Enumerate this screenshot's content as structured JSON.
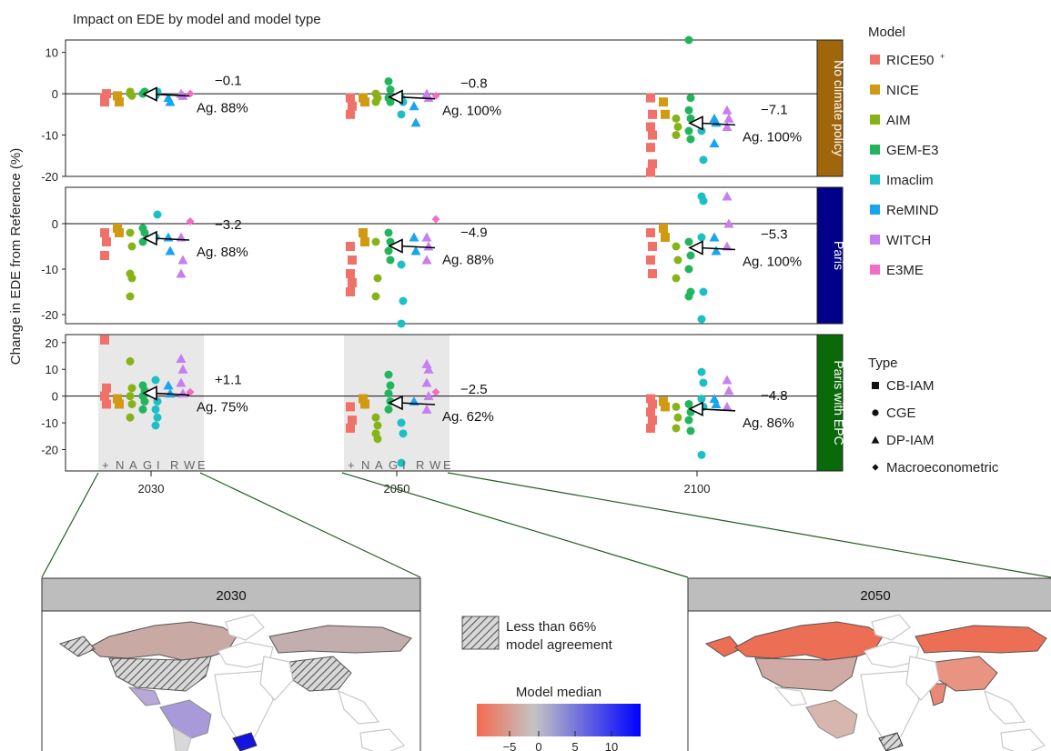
{
  "figure_title": "Impact on EDE by model and model type",
  "y_axis_label": "Change in EDE from Reference (%)",
  "legend": {
    "model_title": "Model",
    "models": [
      {
        "label": "RICE50",
        "sup": "+",
        "color": "#f0716a"
      },
      {
        "label": "NICE",
        "color": "#d19a12"
      },
      {
        "label": "AIM",
        "color": "#86b418"
      },
      {
        "label": "GEM-E3",
        "color": "#22b55e"
      },
      {
        "label": "Imaclim",
        "color": "#1cc0c4"
      },
      {
        "label": "ReMIND",
        "color": "#1aa3f0"
      },
      {
        "label": "WITCH",
        "color": "#c67ef0"
      },
      {
        "label": "E3ME",
        "color": "#f26cc8"
      }
    ],
    "type_title": "Type",
    "types": [
      {
        "label": "CB-IAM",
        "shape": "square"
      },
      {
        "label": "CGE",
        "shape": "circle"
      },
      {
        "label": "DP-IAM",
        "shape": "triangle"
      },
      {
        "label": "Macroeconometric",
        "shape": "diamond"
      }
    ]
  },
  "chart_data": {
    "type": "scatter",
    "x_categories": [
      "2030",
      "2050",
      "2100"
    ],
    "model_letters": [
      "+",
      "N",
      "A",
      "G",
      "I",
      "R",
      "W",
      "E"
    ],
    "panels": [
      {
        "label": "No climate policy",
        "strip_color": "#a0660c",
        "ylim": [
          -20,
          13
        ],
        "yticks": [
          10,
          0,
          -10,
          -20
        ],
        "groups": [
          {
            "year": "2030",
            "median": -0.1,
            "median_label": "−0.1",
            "agreement": "Ag. 88%",
            "highlight": false,
            "models": [
              [
                -1,
                0,
                -2
              ],
              [
                -0.5,
                -2
              ],
              [
                0,
                -0.5,
                0.5
              ],
              [
                0,
                0.5
              ],
              [
                -0.5,
                0.5
              ],
              [
                -1,
                -2
              ],
              [
                0,
                -0.5
              ],
              [
                0
              ]
            ]
          },
          {
            "year": "2050",
            "median": -0.8,
            "median_label": "−0.8",
            "agreement": "Ag. 100%",
            "highlight": false,
            "models": [
              [
                -1,
                -3,
                -5
              ],
              [
                -1,
                -2
              ],
              [
                0,
                -1,
                -2
              ],
              [
                3,
                1,
                -1,
                -2
              ],
              [
                -1,
                -2,
                -5
              ],
              [
                -3,
                -7
              ],
              [
                0,
                -1
              ],
              [
                -0.5
              ]
            ]
          },
          {
            "year": "2100",
            "median": -7.1,
            "median_label": "−7.1",
            "agreement": "Ag. 100%",
            "highlight": false,
            "models": [
              [
                -1,
                -5,
                -8,
                -10,
                -13,
                -17,
                -19
              ],
              [
                -2,
                -5
              ],
              [
                -6,
                -8,
                -10
              ],
              [
                13,
                -1,
                -4,
                -6,
                -9,
                -11
              ],
              [
                -9,
                -16
              ],
              [
                -6,
                -7,
                -12
              ],
              [
                -4,
                -6,
                -8
              ],
              []
            ]
          }
        ]
      },
      {
        "label": "Paris",
        "strip_color": "#000088",
        "ylim": [
          -22,
          8
        ],
        "yticks": [
          0,
          -10,
          -20
        ],
        "groups": [
          {
            "year": "2030",
            "median": -3.2,
            "median_label": "−3.2",
            "agreement": "Ag. 88%",
            "highlight": false,
            "models": [
              [
                -2,
                -4,
                -7
              ],
              [
                -1,
                -2
              ],
              [
                -2,
                -5,
                -11,
                -12,
                -16
              ],
              [
                -1,
                -2,
                -4
              ],
              [
                -3,
                2
              ],
              [
                -3,
                -6
              ],
              [
                -3,
                -8,
                -11
              ],
              [
                0.5
              ]
            ]
          },
          {
            "year": "2050",
            "median": -4.9,
            "median_label": "−4.9",
            "agreement": "Ag. 88%",
            "highlight": false,
            "models": [
              [
                -5,
                -8,
                -11,
                -13,
                -15
              ],
              [
                -2,
                -4
              ],
              [
                -4,
                -12,
                -16
              ],
              [
                -2,
                -4,
                -6,
                -8
              ],
              [
                -9,
                -17,
                -22
              ],
              [
                -3,
                -6
              ],
              [
                -3,
                -5,
                -8
              ],
              [
                1
              ]
            ]
          },
          {
            "year": "2100",
            "median": -5.3,
            "median_label": "−5.3",
            "agreement": "Ag. 100%",
            "highlight": false,
            "models": [
              [
                -2,
                -5,
                -8,
                -11
              ],
              [
                -1,
                -3
              ],
              [
                -5,
                -8,
                -12
              ],
              [
                -4,
                -7,
                -10,
                -15,
                -16
              ],
              [
                6,
                5,
                -3,
                -15,
                -21
              ],
              [
                -3,
                -6
              ],
              [
                6,
                0,
                -5
              ],
              []
            ]
          }
        ]
      },
      {
        "label": "Paris with EPC",
        "strip_color": "#0a6a0a",
        "ylim": [
          -28,
          23
        ],
        "yticks": [
          20,
          10,
          0,
          -10,
          -20
        ],
        "groups": [
          {
            "year": "2030",
            "median": 1.1,
            "median_label": "+1.1",
            "agreement": "Ag. 75%",
            "highlight": true,
            "models": [
              [
                21,
                3,
                0,
                -3
              ],
              [
                -1,
                -3
              ],
              [
                13,
                3,
                0,
                -3,
                -8
              ],
              [
                4,
                2,
                0,
                -2,
                -5
              ],
              [
                6,
                -2,
                -5,
                -8,
                -11
              ],
              [
                4,
                1
              ],
              [
                14,
                10,
                5,
                1
              ],
              [
                1.5
              ]
            ]
          },
          {
            "year": "2050",
            "median": -2.5,
            "median_label": "−2.5",
            "agreement": "Ag. 62%",
            "highlight": true,
            "models": [
              [
                -4,
                -9,
                -12
              ],
              [
                -1,
                -3
              ],
              [
                -8,
                -11,
                -14,
                -16
              ],
              [
                8,
                4,
                1,
                -2,
                -5
              ],
              [
                -10,
                -14,
                -25
              ],
              [
                -2
              ],
              [
                12,
                10,
                5,
                0,
                -5
              ],
              [
                1.5
              ]
            ]
          },
          {
            "year": "2100",
            "median": -4.8,
            "median_label": "−4.8",
            "agreement": "Ag. 86%",
            "highlight": false,
            "models": [
              [
                -1,
                -3,
                -6,
                -9,
                -12
              ],
              [
                -2,
                -4
              ],
              [
                -4,
                -8,
                -12
              ],
              [
                -3,
                -6,
                -9,
                -13
              ],
              [
                9,
                5,
                -1,
                -4,
                -22
              ],
              [
                -1,
                -3
              ],
              [
                6,
                2,
                -4
              ],
              []
            ]
          }
        ]
      }
    ]
  },
  "lower": {
    "map_2030_title": "2030",
    "map_2050_title": "2050",
    "hatch_legend_line1": "Less than 66%",
    "hatch_legend_line2": "model agreement",
    "colorbar_title": "Model median",
    "colorbar_ticks": [
      "−5",
      "0",
      "5",
      "10"
    ],
    "colorbar_colors": [
      "#f46a4e",
      "#c4c4c4",
      "#0000ff"
    ]
  }
}
